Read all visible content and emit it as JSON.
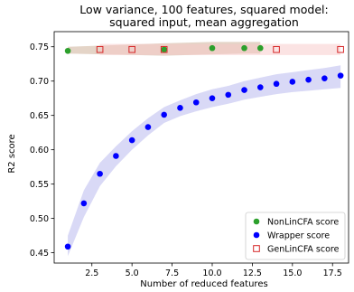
{
  "chart_data": {
    "type": "scatter",
    "title_lines": [
      "Low variance, 100 features, squared model:",
      "squared input, mean aggregation"
    ],
    "xlabel": "Number of reduced features",
    "ylabel": "R2 score",
    "xlim": [
      0.15,
      18.5
    ],
    "ylim": [
      0.435,
      0.772
    ],
    "xticks": [
      2.5,
      5.0,
      7.5,
      10.0,
      12.5,
      15.0,
      17.5
    ],
    "xtick_labels": [
      "2.5",
      "5.0",
      "7.5",
      "10.0",
      "12.5",
      "15.0",
      "17.5"
    ],
    "yticks": [
      0.45,
      0.5,
      0.55,
      0.6,
      0.65,
      0.7,
      0.75
    ],
    "ytick_labels": [
      "0.45",
      "0.50",
      "0.55",
      "0.60",
      "0.65",
      "0.70",
      "0.75"
    ],
    "grid": false,
    "legend_position": "bottom-right",
    "series": [
      {
        "name": "NonLinCFA score",
        "marker": "filled-circle",
        "color": "#2ca02c",
        "band_color": "#c9a98f",
        "x": [
          1,
          7,
          10,
          12,
          13
        ],
        "y": [
          0.744,
          0.746,
          0.748,
          0.748,
          0.748
        ],
        "band_lower": [
          0.74,
          0.737,
          0.739,
          0.74,
          0.74
        ],
        "band_upper": [
          0.75,
          0.755,
          0.757,
          0.757,
          0.757
        ]
      },
      {
        "name": "Wrapper score",
        "marker": "filled-circle",
        "color": "#0000ff",
        "band_color": "#b3b3ee",
        "x": [
          1,
          2,
          3,
          4,
          5,
          6,
          7,
          8,
          9,
          10,
          11,
          12,
          13,
          14,
          15,
          16,
          17,
          18
        ],
        "y": [
          0.459,
          0.522,
          0.565,
          0.591,
          0.614,
          0.633,
          0.651,
          0.661,
          0.669,
          0.675,
          0.68,
          0.687,
          0.691,
          0.696,
          0.699,
          0.702,
          0.704,
          0.708
        ],
        "band_lower": [
          0.445,
          0.502,
          0.547,
          0.576,
          0.6,
          0.621,
          0.639,
          0.649,
          0.656,
          0.662,
          0.667,
          0.673,
          0.677,
          0.681,
          0.684,
          0.686,
          0.688,
          0.69
        ],
        "band_upper": [
          0.475,
          0.541,
          0.581,
          0.605,
          0.627,
          0.646,
          0.662,
          0.672,
          0.681,
          0.688,
          0.693,
          0.7,
          0.705,
          0.71,
          0.713,
          0.716,
          0.719,
          0.723
        ]
      },
      {
        "name": "GenLinCFA score",
        "marker": "open-square",
        "color": "#d62728",
        "band_color": "#f7c7c7",
        "x": [
          3,
          5,
          7,
          14,
          18
        ],
        "y": [
          0.746,
          0.746,
          0.746,
          0.746,
          0.746
        ],
        "band_lower": [
          0.738,
          0.738,
          0.738,
          0.738,
          0.738
        ],
        "band_upper": [
          0.754,
          0.754,
          0.754,
          0.754,
          0.754
        ]
      }
    ]
  }
}
